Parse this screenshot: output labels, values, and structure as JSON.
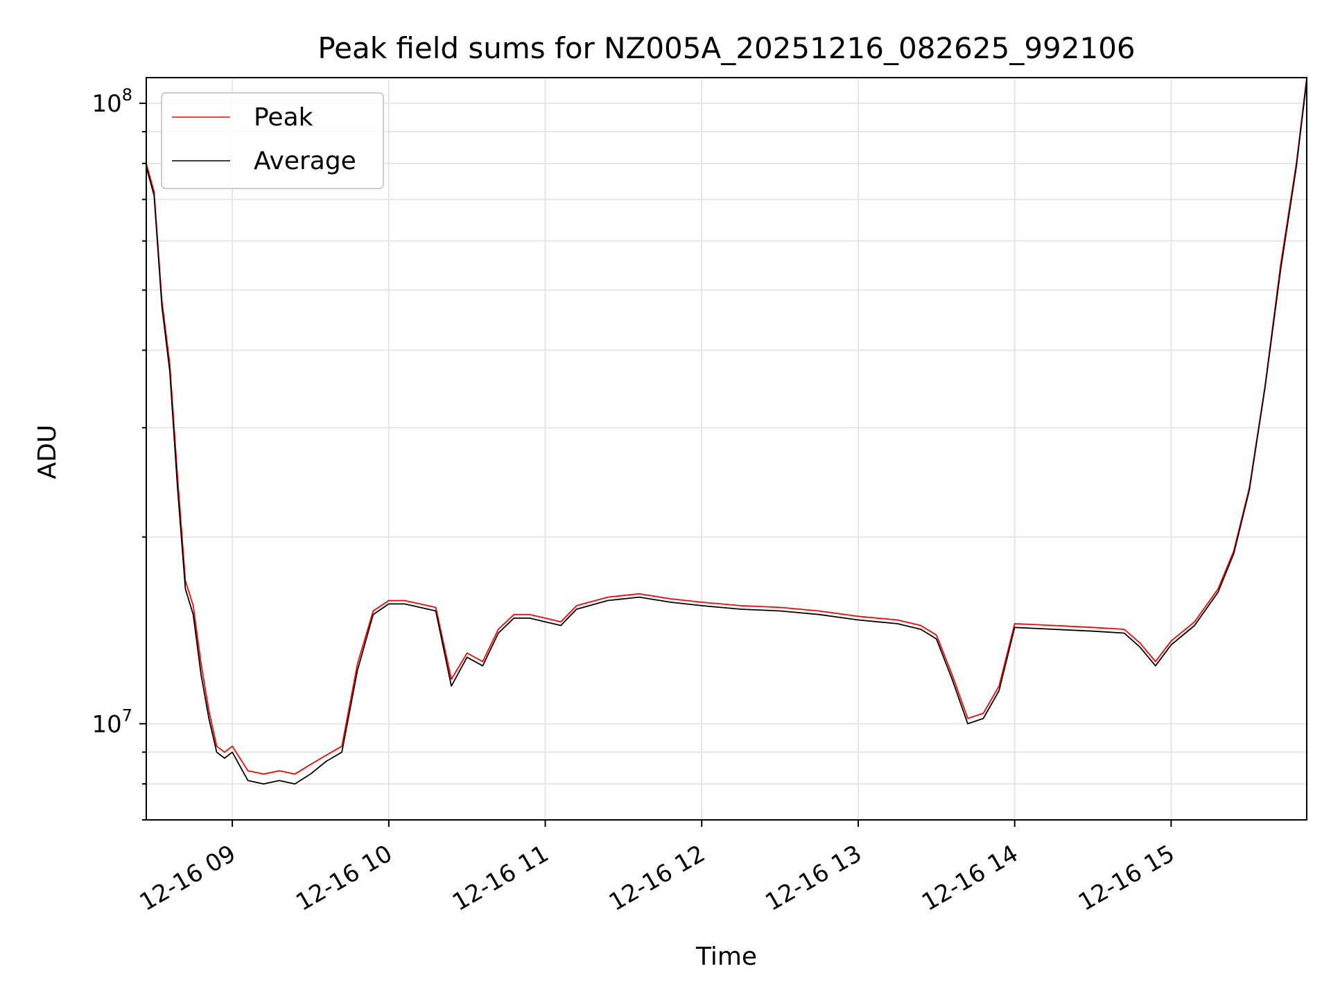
{
  "chart_data": {
    "type": "line",
    "title": "Peak field sums for NZ005A_20251216_082625_992106",
    "xlabel": "Time",
    "ylabel": "ADU",
    "yscale": "log",
    "xlim": [
      "2025-12-16 08:27",
      "2025-12-16 15:52"
    ],
    "ylim": [
      7000000.0,
      110000000.0
    ],
    "grid": true,
    "legend_position": "upper-left",
    "x_ticks": [
      {
        "label": "12-16 09",
        "time": "2025-12-16 09:00"
      },
      {
        "label": "12-16 10",
        "time": "2025-12-16 10:00"
      },
      {
        "label": "12-16 11",
        "time": "2025-12-16 11:00"
      },
      {
        "label": "12-16 12",
        "time": "2025-12-16 12:00"
      },
      {
        "label": "12-16 13",
        "time": "2025-12-16 13:00"
      },
      {
        "label": "12-16 14",
        "time": "2025-12-16 14:00"
      },
      {
        "label": "12-16 15",
        "time": "2025-12-16 15:00"
      }
    ],
    "y_ticks": [
      {
        "base": "10",
        "exp": "7",
        "value": 10000000
      },
      {
        "base": "10",
        "exp": "8",
        "value": 100000000
      }
    ],
    "x": [
      "2025-12-16 08:27",
      "2025-12-16 08:30",
      "2025-12-16 08:33",
      "2025-12-16 08:36",
      "2025-12-16 08:39",
      "2025-12-16 08:42",
      "2025-12-16 08:45",
      "2025-12-16 08:48",
      "2025-12-16 08:51",
      "2025-12-16 08:54",
      "2025-12-16 08:57",
      "2025-12-16 09:00",
      "2025-12-16 09:06",
      "2025-12-16 09:12",
      "2025-12-16 09:18",
      "2025-12-16 09:24",
      "2025-12-16 09:30",
      "2025-12-16 09:36",
      "2025-12-16 09:42",
      "2025-12-16 09:48",
      "2025-12-16 09:54",
      "2025-12-16 10:00",
      "2025-12-16 10:06",
      "2025-12-16 10:12",
      "2025-12-16 10:18",
      "2025-12-16 10:24",
      "2025-12-16 10:30",
      "2025-12-16 10:36",
      "2025-12-16 10:42",
      "2025-12-16 10:48",
      "2025-12-16 10:54",
      "2025-12-16 11:00",
      "2025-12-16 11:06",
      "2025-12-16 11:12",
      "2025-12-16 11:24",
      "2025-12-16 11:36",
      "2025-12-16 11:48",
      "2025-12-16 12:00",
      "2025-12-16 12:15",
      "2025-12-16 12:30",
      "2025-12-16 12:45",
      "2025-12-16 13:00",
      "2025-12-16 13:15",
      "2025-12-16 13:24",
      "2025-12-16 13:30",
      "2025-12-16 13:36",
      "2025-12-16 13:42",
      "2025-12-16 13:48",
      "2025-12-16 13:54",
      "2025-12-16 14:00",
      "2025-12-16 14:15",
      "2025-12-16 14:30",
      "2025-12-16 14:42",
      "2025-12-16 14:48",
      "2025-12-16 14:54",
      "2025-12-16 15:00",
      "2025-12-16 15:09",
      "2025-12-16 15:18",
      "2025-12-16 15:24",
      "2025-12-16 15:30",
      "2025-12-16 15:36",
      "2025-12-16 15:42",
      "2025-12-16 15:48",
      "2025-12-16 15:52"
    ],
    "series": [
      {
        "name": "Peak",
        "color": "#ff0000",
        "values": [
          80000000,
          72000000,
          48000000,
          38000000,
          25000000,
          17000000,
          15500000,
          12500000,
          10500000,
          9200000,
          9000000,
          9200000,
          8400000,
          8300000,
          8400000,
          8300000,
          8600000,
          8900000,
          9200000,
          12500000,
          15200000,
          15800000,
          15800000,
          15600000,
          15400000,
          11800000,
          13000000,
          12600000,
          14200000,
          15000000,
          15000000,
          14800000,
          14600000,
          15500000,
          16000000,
          16200000,
          15900000,
          15700000,
          15500000,
          15400000,
          15200000,
          14900000,
          14700000,
          14400000,
          13900000,
          12000000,
          10200000,
          10400000,
          11500000,
          14500000,
          14400000,
          14300000,
          14200000,
          13500000,
          12600000,
          13600000,
          14600000,
          16500000,
          19000000,
          24000000,
          35000000,
          55000000,
          80000000,
          110000000
        ]
      },
      {
        "name": "Average",
        "color": "#000000",
        "values": [
          79000000,
          71000000,
          47000000,
          37000000,
          24000000,
          16500000,
          15000000,
          12000000,
          10200000,
          9000000,
          8800000,
          9000000,
          8100000,
          8000000,
          8100000,
          8000000,
          8300000,
          8700000,
          9000000,
          12200000,
          15000000,
          15600000,
          15600000,
          15400000,
          15200000,
          11500000,
          12800000,
          12400000,
          14000000,
          14800000,
          14800000,
          14600000,
          14400000,
          15300000,
          15800000,
          16000000,
          15700000,
          15500000,
          15300000,
          15200000,
          15000000,
          14700000,
          14500000,
          14200000,
          13700000,
          11800000,
          10000000,
          10200000,
          11300000,
          14300000,
          14200000,
          14100000,
          14000000,
          13300000,
          12400000,
          13400000,
          14400000,
          16300000,
          18800000,
          23800000,
          34800000,
          54000000,
          79000000,
          109000000
        ]
      }
    ]
  }
}
